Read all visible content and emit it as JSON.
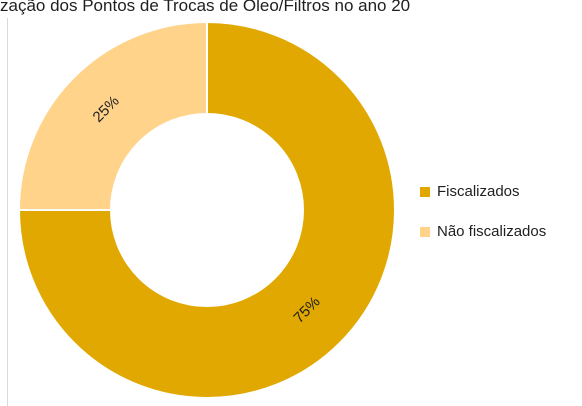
{
  "chart_data": {
    "type": "pie",
    "donut": true,
    "title": "zação dos Pontos de Trocas de Óleo/Filtros no ano 20",
    "categories": [
      "Fiscalizados",
      "Não fiscalizados"
    ],
    "values": [
      75,
      25
    ],
    "data_labels": [
      "75%",
      "25%"
    ],
    "colors": [
      "#E0A800",
      "#FFD38A"
    ],
    "legend_position": "right"
  }
}
